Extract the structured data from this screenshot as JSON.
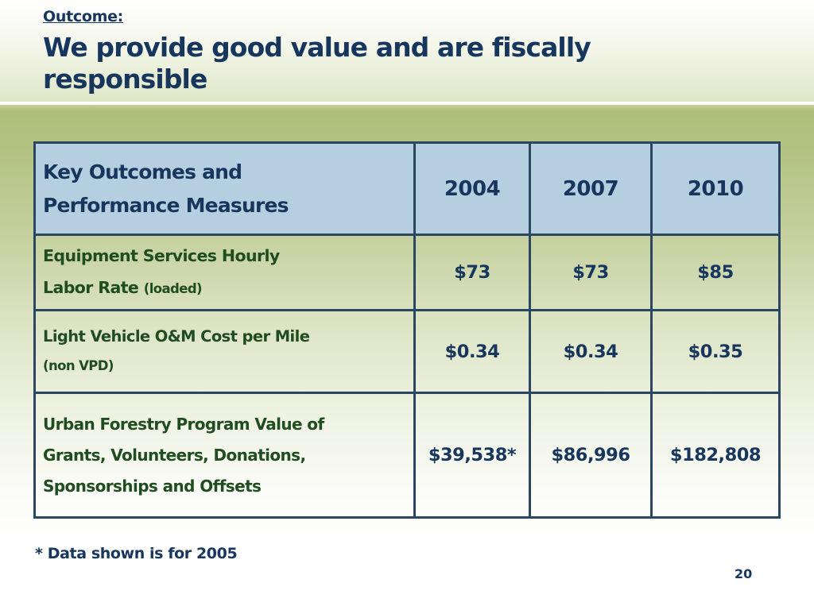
{
  "slide": {
    "subtitle": "Outcome:",
    "title": "We provide good value and are fiscally responsible",
    "footnote": "* Data shown is for 2005",
    "page_number": "20"
  },
  "table": {
    "header": {
      "label_line1": "Key Outcomes  and",
      "label_line2": "Performance Measures",
      "years": [
        "2004",
        "2007",
        "2010"
      ]
    },
    "rows": [
      {
        "label_line1": "Equipment Services Hourly",
        "label_line2": "Labor Rate",
        "label_note": "(loaded)",
        "values": [
          "$73",
          "$73",
          "$85"
        ]
      },
      {
        "label_line1": "Light Vehicle O&M Cost per Mile",
        "label_note": "(non VPD)",
        "values": [
          "$0.34",
          "$0.34",
          "$0.35"
        ]
      },
      {
        "label_line1": "Urban Forestry Program Value of",
        "label_line2": "Grants, Volunteers, Donations,",
        "label_line3": "Sponsorships and Offsets",
        "values": [
          "$39,538*",
          "$86,996",
          "$182,808"
        ]
      }
    ]
  }
}
